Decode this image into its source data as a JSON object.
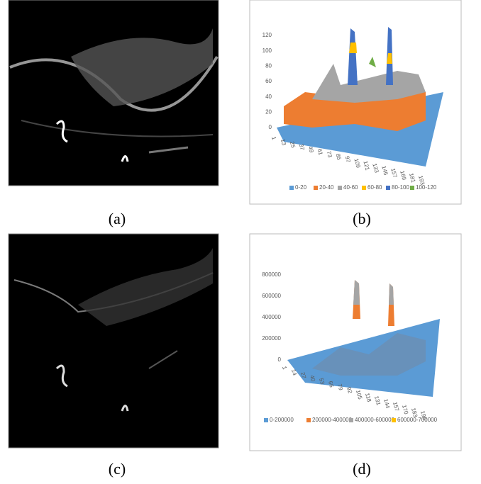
{
  "panels": [
    {
      "caption": "(a)"
    },
    {
      "caption": "(b)",
      "yticks": [
        0,
        20,
        40,
        60,
        80,
        100,
        120
      ],
      "xticks": [
        1,
        13,
        25,
        37,
        49,
        61,
        73,
        85,
        97,
        109,
        121,
        133,
        145,
        157,
        169,
        181,
        193
      ],
      "legend": [
        {
          "label": "0-20",
          "color": "#5b9bd5"
        },
        {
          "label": "20-40",
          "color": "#ed7d31"
        },
        {
          "label": "40-60",
          "color": "#a5a5a5"
        },
        {
          "label": "60-80",
          "color": "#ffc000"
        },
        {
          "label": "80-100",
          "color": "#4472c4"
        },
        {
          "label": "100-120",
          "color": "#70ad47"
        }
      ]
    },
    {
      "caption": "(c)"
    },
    {
      "caption": "(d)",
      "yticks": [
        0,
        200000,
        400000,
        600000,
        800000
      ],
      "xticks": [
        1,
        14,
        27,
        40,
        53,
        66,
        79,
        92,
        105,
        118,
        131,
        144,
        157,
        170,
        183,
        196
      ],
      "legend": [
        {
          "label": "0-200000",
          "color": "#5b9bd5"
        },
        {
          "label": "200000-400000",
          "color": "#ed7d31"
        },
        {
          "label": "400000-600000",
          "color": "#a5a5a5"
        },
        {
          "label": "600000-700000",
          "color": "#ffc000"
        }
      ]
    }
  ]
}
